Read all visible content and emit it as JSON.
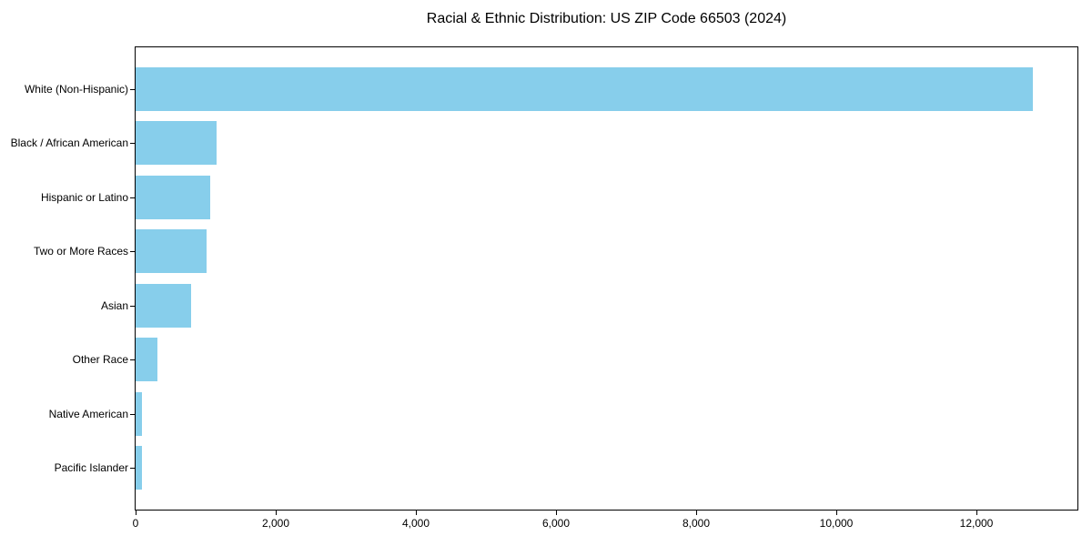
{
  "chart_data": {
    "type": "bar",
    "orientation": "horizontal",
    "title": "Racial & Ethnic Distribution: US ZIP Code 66503 (2024)",
    "categories": [
      "White (Non-Hispanic)",
      "Black / African American",
      "Hispanic or Latino",
      "Two or More Races",
      "Asian",
      "Other Race",
      "Native American",
      "Pacific Islander"
    ],
    "values": [
      12800,
      1150,
      1065,
      1015,
      785,
      315,
      95,
      90
    ],
    "xlabel": "",
    "ylabel": "",
    "xlim": [
      0,
      13440
    ],
    "x_ticks": [
      0,
      2000,
      4000,
      6000,
      8000,
      10000,
      12000
    ],
    "x_tick_labels": [
      "0",
      "2,000",
      "4,000",
      "6,000",
      "8,000",
      "10,000",
      "12,000"
    ],
    "grid": false,
    "legend": "none",
    "bar_color": "#87CEEB",
    "spine_color": "#000000",
    "background_color": "#ffffff"
  }
}
